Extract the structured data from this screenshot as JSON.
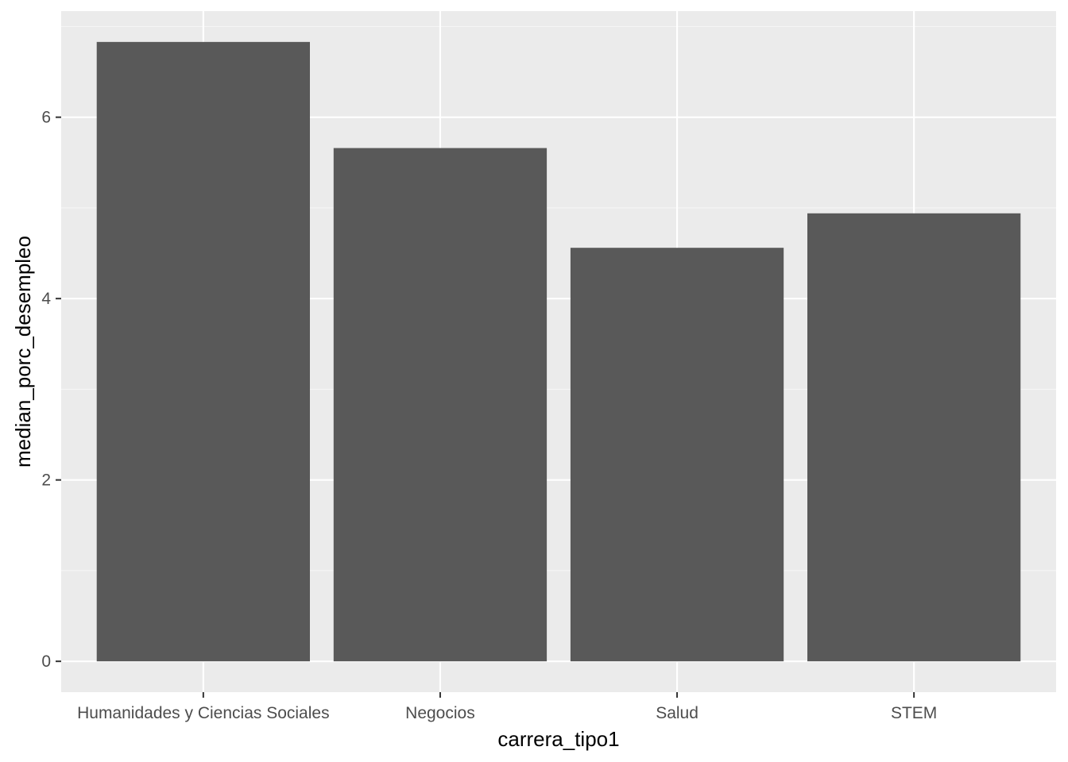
{
  "chart_data": {
    "type": "bar",
    "title": "",
    "xlabel": "carrera_tipo1",
    "ylabel": "median_porc_desempleo",
    "categories": [
      "Humanidades y Ciencias Sociales",
      "Negocios",
      "Salud",
      "STEM"
    ],
    "values": [
      6.83,
      5.66,
      4.56,
      4.94
    ],
    "ylim": [
      -0.34,
      7.17
    ],
    "yticks": [
      0,
      2,
      4,
      6
    ],
    "ytick_labels": [
      "0",
      "2",
      "4",
      "6"
    ],
    "grid": true,
    "legend": "none",
    "colors": {
      "bar": "#595959",
      "panel": "#ebebeb",
      "grid_major": "#ffffff",
      "grid_minor": "#f5f5f5",
      "tick": "#333333",
      "tick_label": "#4d4d4d"
    }
  }
}
